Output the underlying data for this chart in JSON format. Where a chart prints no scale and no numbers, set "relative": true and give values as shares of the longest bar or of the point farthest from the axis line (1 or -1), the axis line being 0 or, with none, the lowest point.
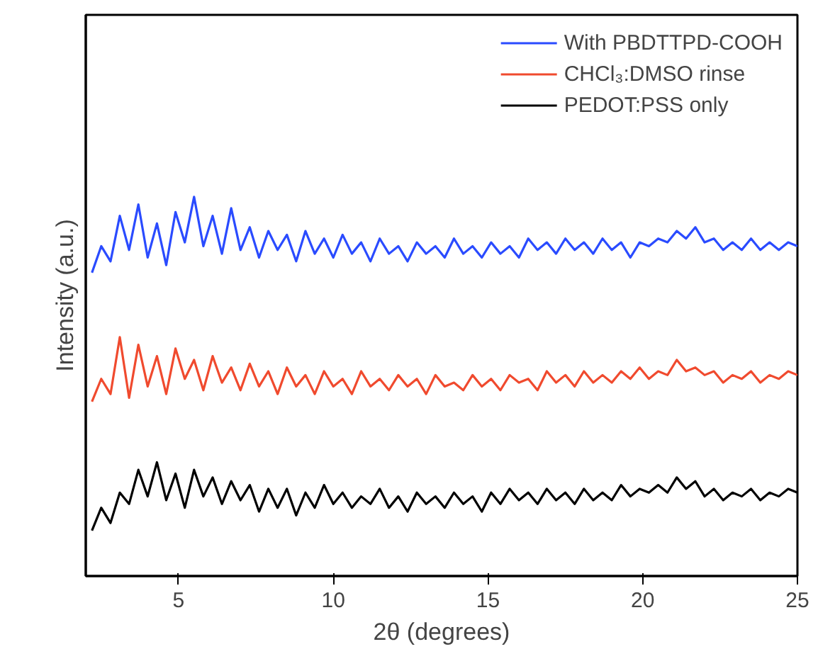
{
  "chart_data": {
    "type": "line",
    "xlabel": "2θ (degrees)",
    "ylabel": "Intensity (a.u.)",
    "relative": true,
    "x": [
      2.2,
      2.5,
      2.8,
      3.1,
      3.4,
      3.7,
      4.0,
      4.3,
      4.6,
      4.9,
      5.2,
      5.5,
      5.8,
      6.1,
      6.4,
      6.7,
      7.0,
      7.3,
      7.6,
      7.9,
      8.2,
      8.5,
      8.8,
      9.1,
      9.4,
      9.7,
      10.0,
      10.3,
      10.6,
      10.9,
      11.2,
      11.5,
      11.8,
      12.1,
      12.4,
      12.7,
      13.0,
      13.3,
      13.6,
      13.9,
      14.2,
      14.5,
      14.8,
      15.1,
      15.4,
      15.7,
      16.0,
      16.3,
      16.6,
      16.9,
      17.2,
      17.5,
      17.8,
      18.1,
      18.4,
      18.7,
      19.0,
      19.3,
      19.6,
      19.9,
      20.2,
      20.5,
      20.8,
      21.1,
      21.4,
      21.7,
      22.0,
      22.3,
      22.6,
      22.9,
      23.2,
      23.5,
      23.8,
      24.1,
      24.4,
      24.7,
      25.0
    ],
    "xlim": [
      2,
      25
    ],
    "xticks": [
      5,
      10,
      15,
      20,
      25
    ],
    "grid": false,
    "legend": "top right",
    "line_style": "solid",
    "marker": "none",
    "series": [
      {
        "name": "With PBDTTPD-COOH",
        "color": "#2a4bff",
        "values": [
          0.8,
          0.87,
          0.83,
          0.95,
          0.86,
          0.98,
          0.84,
          0.93,
          0.82,
          0.96,
          0.88,
          1.0,
          0.87,
          0.95,
          0.85,
          0.97,
          0.86,
          0.92,
          0.84,
          0.91,
          0.86,
          0.9,
          0.83,
          0.91,
          0.85,
          0.89,
          0.84,
          0.9,
          0.85,
          0.88,
          0.83,
          0.89,
          0.85,
          0.87,
          0.83,
          0.88,
          0.85,
          0.87,
          0.84,
          0.89,
          0.85,
          0.87,
          0.84,
          0.88,
          0.85,
          0.87,
          0.84,
          0.89,
          0.86,
          0.88,
          0.85,
          0.89,
          0.86,
          0.88,
          0.85,
          0.89,
          0.86,
          0.88,
          0.84,
          0.88,
          0.87,
          0.89,
          0.88,
          0.91,
          0.89,
          0.92,
          0.88,
          0.89,
          0.86,
          0.88,
          0.86,
          0.89,
          0.86,
          0.88,
          0.86,
          0.88,
          0.87
        ]
      },
      {
        "name": "CHCl₃:DMSO rinse",
        "color": "#f04a2e",
        "values": [
          0.46,
          0.52,
          0.48,
          0.63,
          0.47,
          0.61,
          0.5,
          0.58,
          0.48,
          0.6,
          0.52,
          0.57,
          0.49,
          0.58,
          0.51,
          0.55,
          0.49,
          0.56,
          0.5,
          0.54,
          0.48,
          0.55,
          0.5,
          0.53,
          0.48,
          0.54,
          0.5,
          0.52,
          0.48,
          0.54,
          0.5,
          0.52,
          0.49,
          0.53,
          0.5,
          0.52,
          0.48,
          0.53,
          0.5,
          0.51,
          0.49,
          0.53,
          0.5,
          0.52,
          0.49,
          0.53,
          0.51,
          0.52,
          0.49,
          0.54,
          0.51,
          0.53,
          0.5,
          0.54,
          0.51,
          0.53,
          0.51,
          0.54,
          0.52,
          0.55,
          0.52,
          0.54,
          0.53,
          0.57,
          0.54,
          0.55,
          0.53,
          0.54,
          0.51,
          0.53,
          0.52,
          0.54,
          0.51,
          0.53,
          0.52,
          0.54,
          0.53
        ]
      },
      {
        "name": "PEDOT:PSS only",
        "color": "#000000",
        "values": [
          0.12,
          0.18,
          0.14,
          0.22,
          0.19,
          0.28,
          0.21,
          0.3,
          0.2,
          0.27,
          0.18,
          0.28,
          0.21,
          0.26,
          0.19,
          0.25,
          0.2,
          0.24,
          0.17,
          0.23,
          0.18,
          0.23,
          0.16,
          0.22,
          0.18,
          0.24,
          0.19,
          0.22,
          0.18,
          0.21,
          0.19,
          0.23,
          0.18,
          0.21,
          0.17,
          0.22,
          0.19,
          0.21,
          0.18,
          0.22,
          0.19,
          0.21,
          0.17,
          0.22,
          0.19,
          0.23,
          0.2,
          0.22,
          0.19,
          0.23,
          0.2,
          0.22,
          0.19,
          0.23,
          0.2,
          0.22,
          0.2,
          0.24,
          0.21,
          0.23,
          0.22,
          0.24,
          0.22,
          0.26,
          0.23,
          0.25,
          0.21,
          0.23,
          0.2,
          0.22,
          0.21,
          0.23,
          0.2,
          0.22,
          0.21,
          0.23,
          0.22
        ]
      }
    ]
  }
}
